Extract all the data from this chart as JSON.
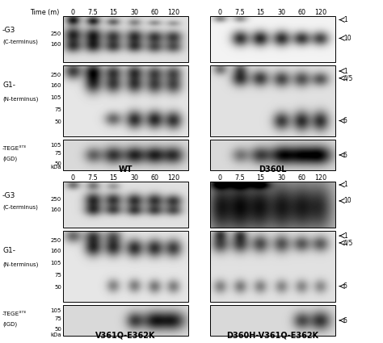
{
  "fig_w": 4.74,
  "fig_h": 4.25,
  "dpi": 100,
  "background": "#ffffff",
  "panel_titles": [
    "WT",
    "D360L",
    "V361Q-E362K",
    "D360H-V361Q-E362K"
  ],
  "time_labels": [
    "0",
    "7.5",
    "15",
    "30",
    "60",
    "120"
  ],
  "left_labels_top": [
    "-G3",
    "(C-terminus)",
    "G1-",
    "(N-terminus)",
    "-TEGE³⁷³",
    "(IGD)"
  ],
  "left_labels_bot": [
    "-G3",
    "(C-terminus)",
    "G1-",
    "(N-terminus)",
    "-TEGE³⁷³",
    "(IGD)"
  ],
  "kda_g3": [
    "250",
    "160"
  ],
  "kda_g1": [
    "250",
    "160",
    "105",
    "75",
    "50"
  ],
  "kda_tege": [
    "105",
    "75",
    "50"
  ],
  "right_top": [
    "1",
    "10",
    "1",
    "4/5",
    "6",
    "6"
  ],
  "right_bot": [
    "1",
    "10",
    "1",
    "4/5",
    "6",
    "6"
  ]
}
